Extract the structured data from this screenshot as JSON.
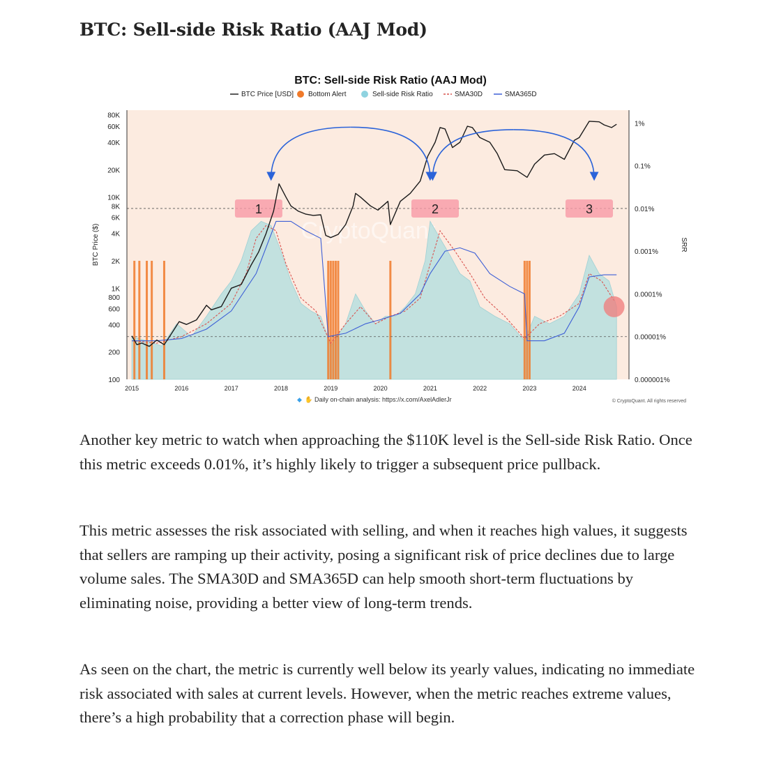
{
  "article": {
    "title": "BTC: Sell-side Risk Ratio (AAJ Mod)",
    "paragraphs": [
      "Another key metric to watch when approaching the $110K level is the Sell-side Risk Ratio. Once this metric exceeds 0.01%, it’s highly likely to trigger a subsequent price pullback.",
      "This metric assesses the risk associated with selling, and when it reaches high values, it suggests that sellers are ramping up their activity, posing a significant risk of price declines due to large volume sales. The SMA30D and SMA365D can help smooth short-term fluctuations by eliminating noise, providing a better view of long-term trends.",
      "As seen on the chart, the metric is currently well below its yearly values, indicating no immediate risk associated with sales at current levels. However, when the metric reaches extreme values, there’s a high probability that a correction phase will begin."
    ]
  },
  "chart_data": {
    "type": "line",
    "title": "BTC: Sell-side Risk Ratio (AAJ Mod)",
    "legend": [
      {
        "name": "BTC Price [USD]",
        "color": "#222222",
        "style": "line"
      },
      {
        "name": "Bottom Alert",
        "color": "#f07a2a",
        "style": "dot"
      },
      {
        "name": "Sell-side Risk Ratio",
        "color": "#8fd3e0",
        "style": "dot"
      },
      {
        "name": "SMA30D",
        "color": "#d9534f",
        "style": "dashed"
      },
      {
        "name": "SMA365D",
        "color": "#3d5fd6",
        "style": "line"
      }
    ],
    "legend_position": "top-center",
    "ylabel_left": "BTC Price ($)",
    "ylabel_right": "SRR",
    "y_left_scale": "log",
    "y_left_ticks": [
      "80K",
      "60K",
      "40K",
      "20K",
      "10K",
      "8K",
      "6K",
      "4K",
      "2K",
      "1K",
      "800",
      "600",
      "400",
      "200",
      "100"
    ],
    "y_left_tick_values": [
      80000,
      60000,
      40000,
      20000,
      10000,
      8000,
      6000,
      4000,
      2000,
      1000,
      800,
      600,
      400,
      200,
      100
    ],
    "y_left_range": [
      100,
      90000
    ],
    "y_right_scale": "log",
    "y_right_ticks": [
      "1%",
      "0.1%",
      "0.01%",
      "0.001%",
      "0.0001%",
      "0.00001%",
      "0.000001%"
    ],
    "y_right_tick_values": [
      1,
      0.1,
      0.01,
      0.001,
      0.0001,
      1e-05,
      1e-06
    ],
    "y_right_range": [
      1e-06,
      2
    ],
    "x_range": [
      2014.9,
      2025.0
    ],
    "x_ticks": [
      "2015",
      "2016",
      "2017",
      "2018",
      "2019",
      "2020",
      "2021",
      "2022",
      "2023",
      "2024"
    ],
    "x_tick_values": [
      2015,
      2016,
      2017,
      2018,
      2019,
      2020,
      2021,
      2022,
      2023,
      2024
    ],
    "reference_lines": [
      {
        "axis": "right",
        "value": 0.01,
        "style": "dashed"
      },
      {
        "axis": "right",
        "value": 1e-05,
        "style": "dashed"
      }
    ],
    "price_series": {
      "name": "BTC Price [USD]",
      "x": [
        2015.0,
        2015.1,
        2015.2,
        2015.35,
        2015.5,
        2015.65,
        2015.8,
        2015.95,
        2016.1,
        2016.3,
        2016.5,
        2016.6,
        2016.8,
        2017.0,
        2017.2,
        2017.4,
        2017.55,
        2017.7,
        2017.85,
        2017.96,
        2018.1,
        2018.2,
        2018.35,
        2018.5,
        2018.65,
        2018.8,
        2018.9,
        2019.0,
        2019.15,
        2019.3,
        2019.45,
        2019.5,
        2019.6,
        2019.8,
        2019.95,
        2020.15,
        2020.2,
        2020.4,
        2020.6,
        2020.8,
        2020.95,
        2021.1,
        2021.2,
        2021.3,
        2021.45,
        2021.6,
        2021.75,
        2021.85,
        2022.0,
        2022.2,
        2022.35,
        2022.5,
        2022.75,
        2022.95,
        2023.1,
        2023.3,
        2023.5,
        2023.7,
        2023.9,
        2024.0,
        2024.2,
        2024.4,
        2024.5,
        2024.65,
        2024.75
      ],
      "y": [
        300,
        240,
        250,
        230,
        270,
        240,
        320,
        430,
        400,
        450,
        650,
        580,
        630,
        1000,
        1100,
        1800,
        2500,
        4000,
        7000,
        14000,
        10000,
        8000,
        7000,
        6500,
        6300,
        6400,
        3800,
        3600,
        3900,
        5000,
        8000,
        11000,
        10000,
        8000,
        7200,
        9000,
        5000,
        9000,
        11000,
        15000,
        28000,
        40000,
        58000,
        56000,
        35000,
        40000,
        60000,
        58000,
        45000,
        40000,
        30000,
        20000,
        19500,
        16500,
        23000,
        29000,
        30000,
        26000,
        42000,
        45000,
        68000,
        67000,
        62000,
        58000,
        63000
      ]
    },
    "srr_series": {
      "name": "Sell-side Risk Ratio",
      "x": [
        2015.0,
        2015.3,
        2015.6,
        2015.9,
        2016.2,
        2016.5,
        2016.8,
        2017.0,
        2017.2,
        2017.4,
        2017.6,
        2017.8,
        2018.0,
        2018.2,
        2018.4,
        2018.6,
        2018.8,
        2019.0,
        2019.3,
        2019.5,
        2019.7,
        2019.9,
        2020.1,
        2020.3,
        2020.5,
        2020.7,
        2020.9,
        2021.0,
        2021.2,
        2021.4,
        2021.6,
        2021.8,
        2022.0,
        2022.3,
        2022.6,
        2022.9,
        2023.1,
        2023.4,
        2023.7,
        2024.0,
        2024.2,
        2024.4,
        2024.6,
        2024.75
      ],
      "y": [
        1e-05,
        8e-06,
        6e-06,
        2e-05,
        1e-05,
        3e-05,
        0.0001,
        0.0002,
        0.0006,
        0.003,
        0.005,
        0.004,
        0.001,
        0.0002,
        6e-05,
        4e-05,
        3e-05,
        6e-06,
        2e-05,
        0.0001,
        4e-05,
        2e-05,
        3e-05,
        3e-05,
        5e-05,
        0.0001,
        0.0006,
        0.005,
        0.002,
        0.0008,
        0.0003,
        0.0002,
        5e-05,
        3e-05,
        2e-05,
        8e-06,
        3e-05,
        2e-05,
        3e-05,
        0.0001,
        0.0008,
        0.0003,
        0.0002,
        5e-05
      ]
    },
    "sma30d_series": {
      "name": "SMA30D",
      "x": [
        2015.0,
        2015.5,
        2016.0,
        2016.5,
        2017.0,
        2017.3,
        2017.5,
        2017.7,
        2017.9,
        2018.1,
        2018.4,
        2018.7,
        2019.0,
        2019.3,
        2019.6,
        2019.9,
        2020.2,
        2020.5,
        2020.8,
        2021.0,
        2021.2,
        2021.5,
        2021.8,
        2022.1,
        2022.5,
        2022.9,
        2023.2,
        2023.6,
        2024.0,
        2024.2,
        2024.45,
        2024.7
      ],
      "y": [
        8e-06,
        7e-06,
        1e-05,
        2e-05,
        6e-05,
        0.0003,
        0.002,
        0.004,
        0.003,
        0.0005,
        8e-05,
        4e-05,
        7e-06,
        2e-05,
        5e-05,
        2e-05,
        3e-05,
        4e-05,
        8e-05,
        0.0005,
        0.003,
        0.001,
        0.0003,
        8e-05,
        3e-05,
        9e-06,
        2e-05,
        3e-05,
        6e-05,
        0.0003,
        0.0002,
        7e-05
      ]
    },
    "sma365d_series": {
      "name": "SMA365D",
      "x": [
        2015.0,
        2015.5,
        2016.0,
        2016.5,
        2017.0,
        2017.5,
        2017.9,
        2018.2,
        2018.5,
        2018.8,
        2018.95,
        2019.3,
        2019.7,
        2020.0,
        2020.4,
        2020.8,
        2021.0,
        2021.3,
        2021.6,
        2021.9,
        2022.2,
        2022.6,
        2022.9,
        2022.95,
        2023.3,
        2023.7,
        2024.0,
        2024.2,
        2024.5,
        2024.75
      ],
      "y": [
        8e-06,
        8e-06,
        9e-06,
        1.5e-05,
        4e-05,
        0.0003,
        0.005,
        0.005,
        0.003,
        0.002,
        1e-05,
        1.2e-05,
        2e-05,
        2.5e-05,
        3.5e-05,
        0.0001,
        0.0003,
        0.001,
        0.0012,
        0.0009,
        0.0003,
        0.00015,
        0.0001,
        8e-06,
        8e-06,
        1.2e-05,
        5e-05,
        0.00025,
        0.00028,
        0.00028
      ]
    },
    "bottom_alerts_x": [
      2015.05,
      2015.15,
      2015.3,
      2015.4,
      2015.65,
      2018.95,
      2019.0,
      2019.05,
      2019.1,
      2019.15,
      2020.2,
      2022.9,
      2022.95,
      2023.0
    ],
    "annotations": [
      {
        "label": "1",
        "x": 2017.55,
        "srr": 0.01
      },
      {
        "label": "2",
        "x": 2021.1,
        "srr": 0.01
      },
      {
        "label": "3",
        "x": 2024.2,
        "srr": 0.01
      }
    ],
    "watermark": "CryptoQuant",
    "footer_note": "Daily on-chain analysis: https://x.com/AxelAdlerJr",
    "copyright": "© CryptoQuant. All rights reserved"
  }
}
